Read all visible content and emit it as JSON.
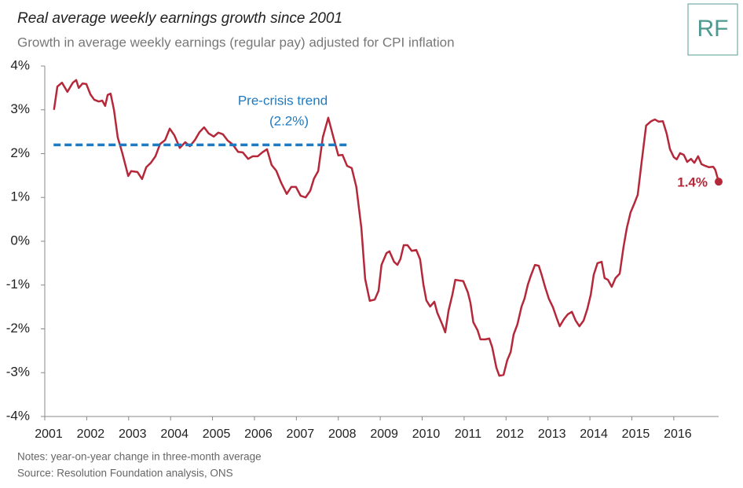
{
  "chart_data": {
    "type": "line",
    "title": "Real average weekly earnings growth since 2001",
    "subtitle": "Growth in average weekly earnings (regular pay) adjusted for CPI inflation",
    "logo": "RF",
    "notes": [
      "Notes:  year-on-year change in three-month  average",
      "Source: Resolution  Foundation analysis, ONS"
    ],
    "xlim": [
      2001,
      2017.07
    ],
    "xticks": [
      2001,
      2002,
      2003,
      2004,
      2005,
      2006,
      2007,
      2008,
      2009,
      2010,
      2011,
      2012,
      2013,
      2014,
      2015,
      2016
    ],
    "ylim": [
      -4,
      4
    ],
    "yticks": [
      {
        "value": 4,
        "label": "4%"
      },
      {
        "value": 3,
        "label": "3%"
      },
      {
        "value": 2,
        "label": "2%"
      },
      {
        "value": 1,
        "label": "1%"
      },
      {
        "value": 0,
        "label": "0%"
      },
      {
        "value": -1,
        "label": "-1%"
      },
      {
        "value": -2,
        "label": "-2%"
      },
      {
        "value": -3,
        "label": "-3%"
      },
      {
        "value": -4,
        "label": "-4%"
      }
    ],
    "grid": false,
    "series": [
      {
        "name": "Real average weekly earnings growth",
        "color": "#b5283a",
        "x": [
          2001.22,
          2001.3,
          2001.41,
          2001.54,
          2001.67,
          2001.75,
          2001.81,
          2001.9,
          2001.99,
          2002.09,
          2002.18,
          2002.29,
          2002.37,
          2002.44,
          2002.5,
          2002.57,
          2002.65,
          2002.74,
          2002.85,
          2002.99,
          2003.06,
          2003.21,
          2003.32,
          2003.42,
          2003.53,
          2003.64,
          2003.75,
          2003.87,
          2003.98,
          2004.09,
          2004.22,
          2004.35,
          2004.46,
          2004.58,
          2004.69,
          2004.8,
          2004.91,
          2005.03,
          2005.14,
          2005.25,
          2005.36,
          2005.48,
          2005.61,
          2005.72,
          2005.85,
          2005.96,
          2006.08,
          2006.19,
          2006.3,
          2006.41,
          2006.52,
          2006.64,
          2006.77,
          2006.88,
          2006.99,
          2007.1,
          2007.22,
          2007.33,
          2007.42,
          2007.52,
          2007.63,
          2007.76,
          2007.87,
          2008.0,
          2008.1,
          2008.21,
          2008.32,
          2008.43,
          2008.55,
          2008.64,
          2008.75,
          2008.87,
          2008.96,
          2009.03,
          2009.15,
          2009.22,
          2009.33,
          2009.41,
          2009.48,
          2009.56,
          2009.65,
          2009.75,
          2009.86,
          2009.95,
          2010.03,
          2010.1,
          2010.19,
          2010.29,
          2010.36,
          2010.48,
          2010.55,
          2010.63,
          2010.72,
          2010.79,
          2010.91,
          2010.98,
          2011.09,
          2011.15,
          2011.22,
          2011.32,
          2011.39,
          2011.51,
          2011.6,
          2011.67,
          2011.77,
          2011.84,
          2011.94,
          2012.03,
          2012.11,
          2012.18,
          2012.27,
          2012.37,
          2012.44,
          2012.52,
          2012.59,
          2012.69,
          2012.78,
          2012.85,
          2012.93,
          2013.02,
          2013.12,
          2013.21,
          2013.28,
          2013.38,
          2013.47,
          2013.57,
          2013.66,
          2013.75,
          2013.85,
          2013.94,
          2014.02,
          2014.09,
          2014.18,
          2014.28,
          2014.35,
          2014.43,
          2014.52,
          2014.61,
          2014.71,
          2014.8,
          2014.88,
          2014.97,
          2015.05,
          2015.14,
          2015.23,
          2015.34,
          2015.46,
          2015.55,
          2015.64,
          2015.74,
          2015.83,
          2015.91,
          2016.0,
          2016.07,
          2016.15,
          2016.24,
          2016.32,
          2016.41,
          2016.49,
          2016.58,
          2016.66,
          2016.75,
          2016.84,
          2016.94,
          2016.99,
          2017.07
        ],
        "values": [
          3.0,
          3.53,
          3.62,
          3.41,
          3.62,
          3.68,
          3.5,
          3.6,
          3.59,
          3.35,
          3.23,
          3.19,
          3.21,
          3.09,
          3.34,
          3.37,
          3.0,
          2.37,
          2.01,
          1.49,
          1.6,
          1.58,
          1.42,
          1.69,
          1.79,
          1.94,
          2.22,
          2.31,
          2.57,
          2.42,
          2.13,
          2.26,
          2.17,
          2.31,
          2.49,
          2.6,
          2.46,
          2.39,
          2.48,
          2.44,
          2.3,
          2.21,
          2.04,
          2.03,
          1.88,
          1.94,
          1.94,
          2.03,
          2.1,
          1.74,
          1.61,
          1.33,
          1.08,
          1.24,
          1.24,
          1.04,
          1.0,
          1.15,
          1.43,
          1.6,
          2.37,
          2.82,
          2.42,
          1.96,
          1.97,
          1.72,
          1.67,
          1.24,
          0.3,
          -0.86,
          -1.36,
          -1.33,
          -1.13,
          -0.54,
          -0.27,
          -0.23,
          -0.47,
          -0.54,
          -0.41,
          -0.09,
          -0.09,
          -0.22,
          -0.2,
          -0.41,
          -0.99,
          -1.35,
          -1.49,
          -1.38,
          -1.63,
          -1.9,
          -2.08,
          -1.58,
          -1.22,
          -0.88,
          -0.9,
          -0.91,
          -1.17,
          -1.4,
          -1.85,
          -2.03,
          -2.24,
          -2.24,
          -2.22,
          -2.42,
          -2.89,
          -3.07,
          -3.05,
          -2.71,
          -2.53,
          -2.13,
          -1.9,
          -1.49,
          -1.31,
          -0.99,
          -0.79,
          -0.54,
          -0.56,
          -0.77,
          -1.04,
          -1.31,
          -1.51,
          -1.76,
          -1.94,
          -1.78,
          -1.67,
          -1.61,
          -1.81,
          -1.94,
          -1.81,
          -1.54,
          -1.22,
          -0.77,
          -0.5,
          -0.47,
          -0.84,
          -0.88,
          -1.04,
          -0.84,
          -0.74,
          -0.14,
          0.3,
          0.66,
          0.84,
          1.06,
          1.78,
          2.64,
          2.74,
          2.78,
          2.73,
          2.74,
          2.46,
          2.1,
          1.92,
          1.87,
          2.01,
          1.97,
          1.81,
          1.88,
          1.79,
          1.94,
          1.76,
          1.72,
          1.69,
          1.7,
          1.63,
          1.36
        ]
      }
    ],
    "trend": {
      "label": [
        "Pre-crisis trend",
        "(2.2%)"
      ],
      "value": 2.2,
      "x": [
        2001.21,
        2008.28
      ],
      "color": "#1f7ac0"
    },
    "end_label": "1.4%"
  }
}
